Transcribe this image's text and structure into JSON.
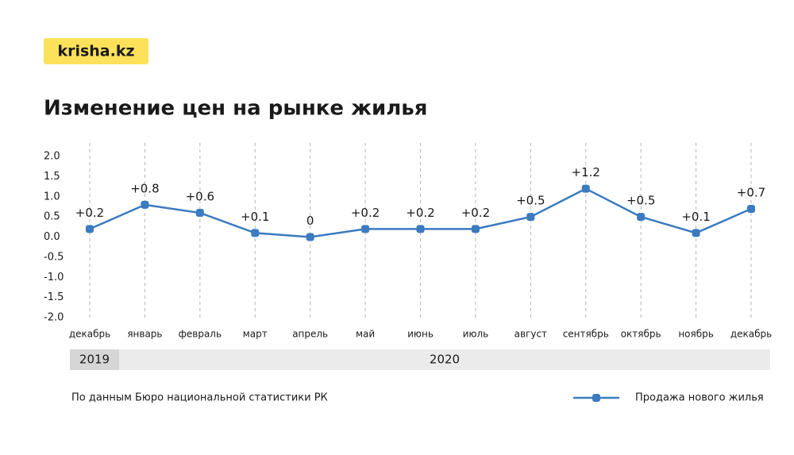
{
  "brand": "krisha.kz",
  "chart_data": {
    "type": "line",
    "title": "Изменение цен на рынке жилья",
    "source": "По данным Бюро национальной статистики РК",
    "categories": [
      "декабрь",
      "январь",
      "февраль",
      "март",
      "апрель",
      "май",
      "июнь",
      "июль",
      "август",
      "сентябрь",
      "октябрь",
      "ноябрь",
      "декабрь"
    ],
    "x_groups": [
      "2019",
      "2020"
    ],
    "series": [
      {
        "name": "Продажа нового жилья",
        "color": "#3b7bc0",
        "values": [
          0.2,
          0.8,
          0.6,
          0.1,
          0,
          0.2,
          0.2,
          0.2,
          0.5,
          1.2,
          0.5,
          0.1,
          0.7
        ],
        "value_labels": [
          "+0.2",
          "+0.8",
          "+0.6",
          "+0.1",
          "0",
          "+0.2",
          "+0.2",
          "+0.2",
          "+0.5",
          "+1.2",
          "+0.5",
          "+0.1",
          "+0.7"
        ]
      }
    ],
    "ylim": [
      -2,
      2
    ],
    "yticks": [
      {
        "value": 2,
        "label": "2.0"
      },
      1.5,
      {
        "value": 1,
        "label": "1.0"
      },
      0.5,
      {
        "value": 0,
        "label": "0.0"
      },
      -0.5,
      {
        "value": -1,
        "label": "-1.0"
      },
      -1.5,
      {
        "value": -2,
        "label": "-2.0"
      }
    ],
    "grid": true
  }
}
